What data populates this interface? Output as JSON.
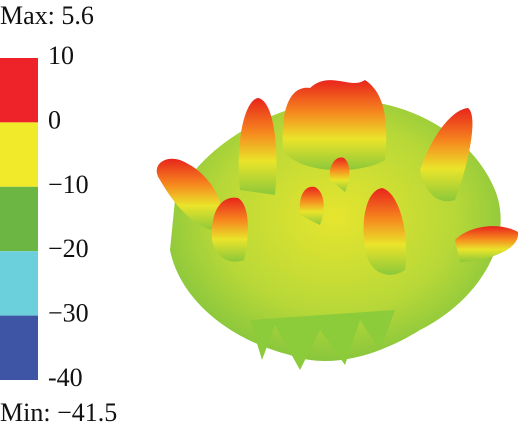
{
  "max_label": "Max: 5.6",
  "min_label": "Min: −41.5",
  "colorbar": {
    "ticks": [
      10,
      0,
      {
        "value": -10,
        "label": "−10"
      },
      {
        "value": -20,
        "label": "−20"
      },
      {
        "value": -30,
        "label": "−30"
      },
      -40
    ],
    "colors": [
      "#ee2229",
      "#f1ea2a",
      "#6cb644",
      "#6ccfdc",
      "#3e55a6"
    ]
  }
}
